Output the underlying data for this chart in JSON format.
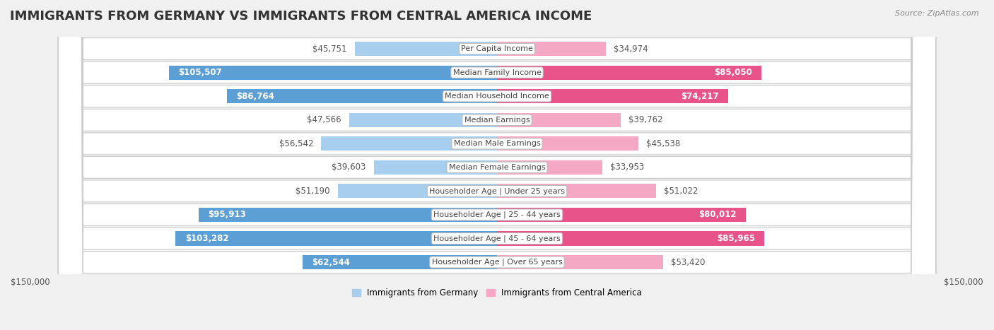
{
  "title": "IMMIGRANTS FROM GERMANY VS IMMIGRANTS FROM CENTRAL AMERICA INCOME",
  "source": "Source: ZipAtlas.com",
  "categories": [
    "Per Capita Income",
    "Median Family Income",
    "Median Household Income",
    "Median Earnings",
    "Median Male Earnings",
    "Median Female Earnings",
    "Householder Age | Under 25 years",
    "Householder Age | 25 - 44 years",
    "Householder Age | 45 - 64 years",
    "Householder Age | Over 65 years"
  ],
  "germany_values": [
    45751,
    105507,
    86764,
    47566,
    56542,
    39603,
    51190,
    95913,
    103282,
    62544
  ],
  "central_america_values": [
    34974,
    85050,
    74217,
    39762,
    45538,
    33953,
    51022,
    80012,
    85965,
    53420
  ],
  "germany_labels": [
    "$45,751",
    "$105,507",
    "$86,764",
    "$47,566",
    "$56,542",
    "$39,603",
    "$51,190",
    "$95,913",
    "$103,282",
    "$62,544"
  ],
  "central_america_labels": [
    "$34,974",
    "$85,050",
    "$74,217",
    "$39,762",
    "$45,538",
    "$33,953",
    "$51,022",
    "$80,012",
    "$85,965",
    "$53,420"
  ],
  "germany_color_light": "#A8CEED",
  "germany_color_dark": "#5B9FD4",
  "central_america_color_light": "#F5A8C4",
  "central_america_color_dark": "#E8538A",
  "inside_label_threshold": 60000,
  "max_value": 150000,
  "x_tick_labels": [
    "$150,000",
    "$150,000"
  ],
  "legend_germany": "Immigrants from Germany",
  "legend_central_america": "Immigrants from Central America",
  "background_color": "#f0f0f0",
  "row_bg_color": "#e8e8e8",
  "title_fontsize": 13,
  "label_fontsize": 8.5,
  "category_fontsize": 8,
  "bar_height": 0.6
}
